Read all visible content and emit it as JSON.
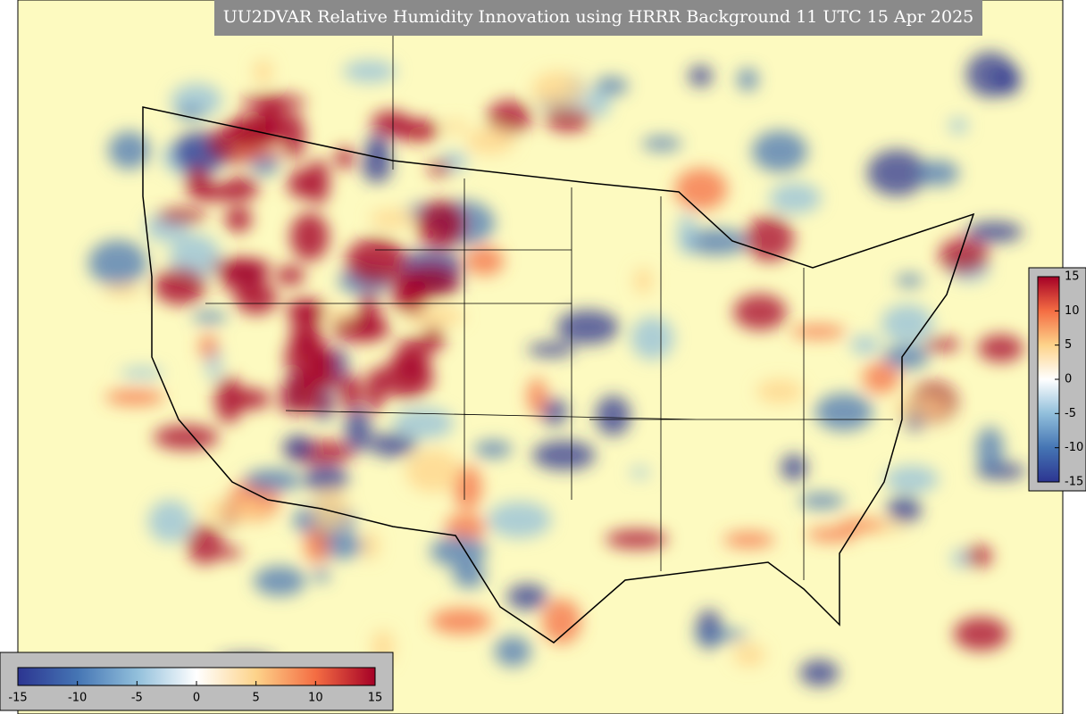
{
  "title": "UU2DVAR Relative Humidity Innovation using HRRR Background 11 UTC 15 Apr 2025",
  "colorbar": {
    "range": [
      -15,
      15
    ],
    "ticks": [
      -15,
      -10,
      -5,
      0,
      5,
      10,
      15
    ],
    "colors": [
      "#2c3591",
      "#4575b4",
      "#91bfdb",
      "#ffffff",
      "#fdd38a",
      "#f46d43",
      "#a50026"
    ]
  }
}
